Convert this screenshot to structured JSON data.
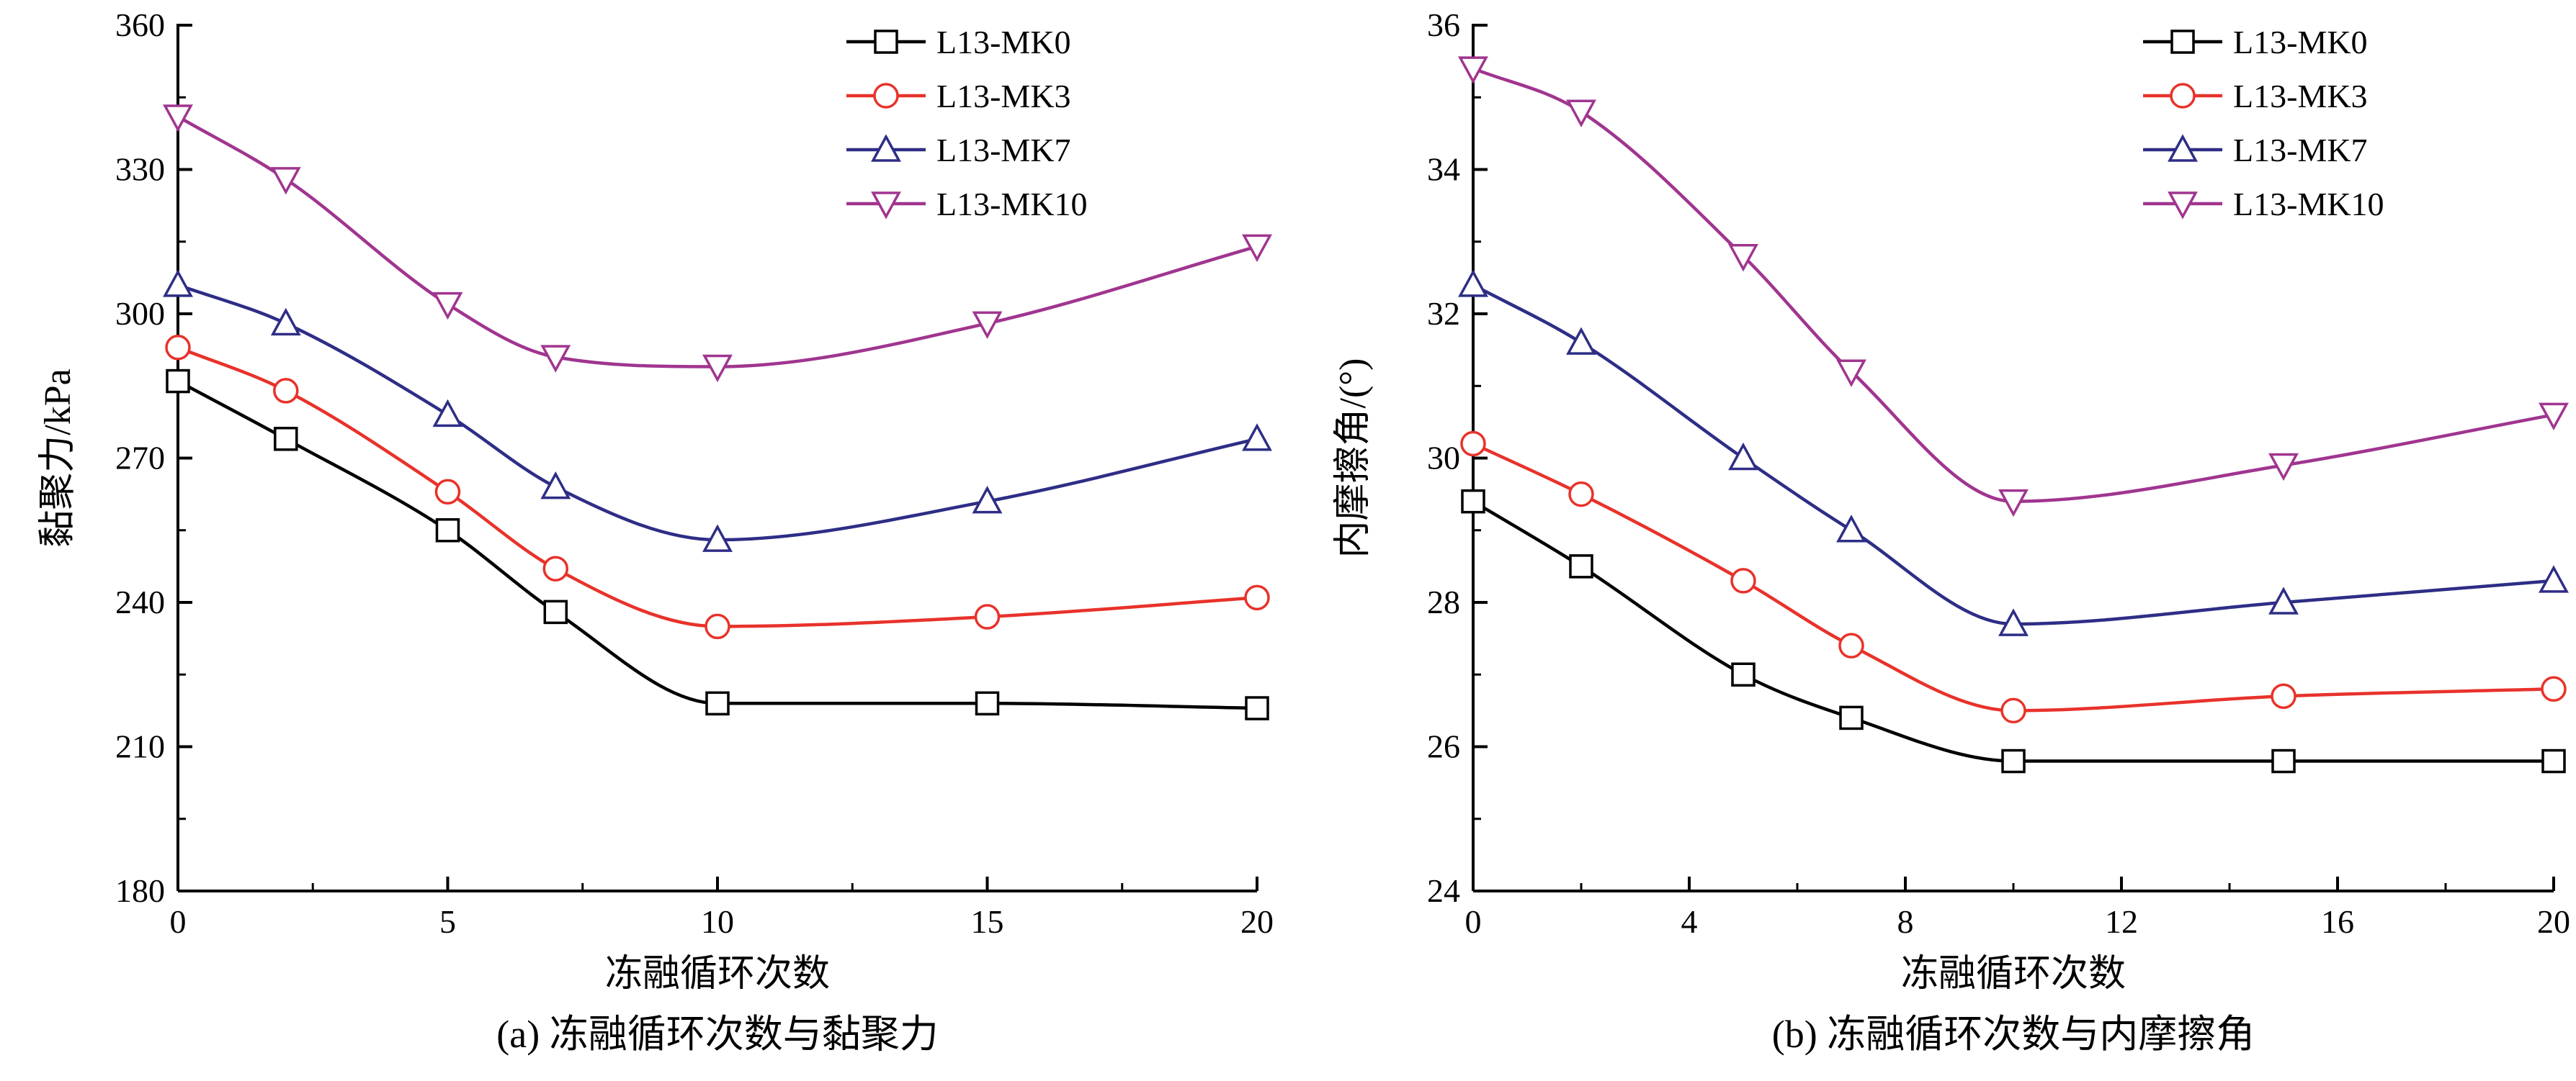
{
  "chart_data": [
    {
      "type": "line",
      "caption": "(a) 冻融循环次数与黏聚力",
      "xlabel": "冻融循环次数",
      "ylabel": "黏聚力/kPa",
      "xlim": [
        0,
        20
      ],
      "ylim": [
        180,
        360
      ],
      "xticks": [
        0,
        5,
        10,
        15,
        20
      ],
      "yticks": [
        180,
        210,
        240,
        270,
        300,
        330,
        360
      ],
      "legend_position": "top-right",
      "x": [
        0,
        2,
        5,
        7,
        10,
        15,
        20
      ],
      "series": [
        {
          "name": "L13-MK0",
          "marker": "square",
          "color": "#000000",
          "values": [
            286,
            274,
            255,
            238,
            219,
            219,
            218
          ]
        },
        {
          "name": "L13-MK3",
          "marker": "circle",
          "color": "#e8322a",
          "values": [
            293,
            284,
            263,
            247,
            235,
            237,
            241
          ]
        },
        {
          "name": "L13-MK7",
          "marker": "triangle-up",
          "color": "#2e2d86",
          "values": [
            306,
            298,
            279,
            264,
            253,
            261,
            274
          ]
        },
        {
          "name": "L13-MK10",
          "marker": "triangle-down",
          "color": "#a0358f",
          "values": [
            341,
            328,
            302,
            291,
            289,
            298,
            314
          ]
        }
      ]
    },
    {
      "type": "line",
      "caption": "(b) 冻融循环次数与内摩擦角",
      "xlabel": "冻融循环次数",
      "ylabel": "内摩擦角/(°)",
      "xlim": [
        0,
        20
      ],
      "ylim": [
        24,
        36
      ],
      "xticks": [
        0,
        4,
        8,
        12,
        16,
        20
      ],
      "yticks": [
        24,
        26,
        28,
        30,
        32,
        34,
        36
      ],
      "legend_position": "top-right",
      "x": [
        0,
        2,
        5,
        7,
        10,
        15,
        20
      ],
      "series": [
        {
          "name": "L13-MK0",
          "marker": "square",
          "color": "#000000",
          "values": [
            29.4,
            28.5,
            27.0,
            26.4,
            25.8,
            25.8,
            25.8
          ]
        },
        {
          "name": "L13-MK3",
          "marker": "circle",
          "color": "#e8322a",
          "values": [
            30.2,
            29.5,
            28.3,
            27.4,
            26.5,
            26.7,
            26.8
          ]
        },
        {
          "name": "L13-MK7",
          "marker": "triangle-up",
          "color": "#2e2d86",
          "values": [
            32.4,
            31.6,
            30.0,
            29.0,
            27.7,
            28.0,
            28.3
          ]
        },
        {
          "name": "L13-MK10",
          "marker": "triangle-down",
          "color": "#a0358f",
          "values": [
            35.4,
            34.8,
            32.8,
            31.2,
            29.4,
            29.9,
            30.6
          ]
        }
      ]
    }
  ]
}
